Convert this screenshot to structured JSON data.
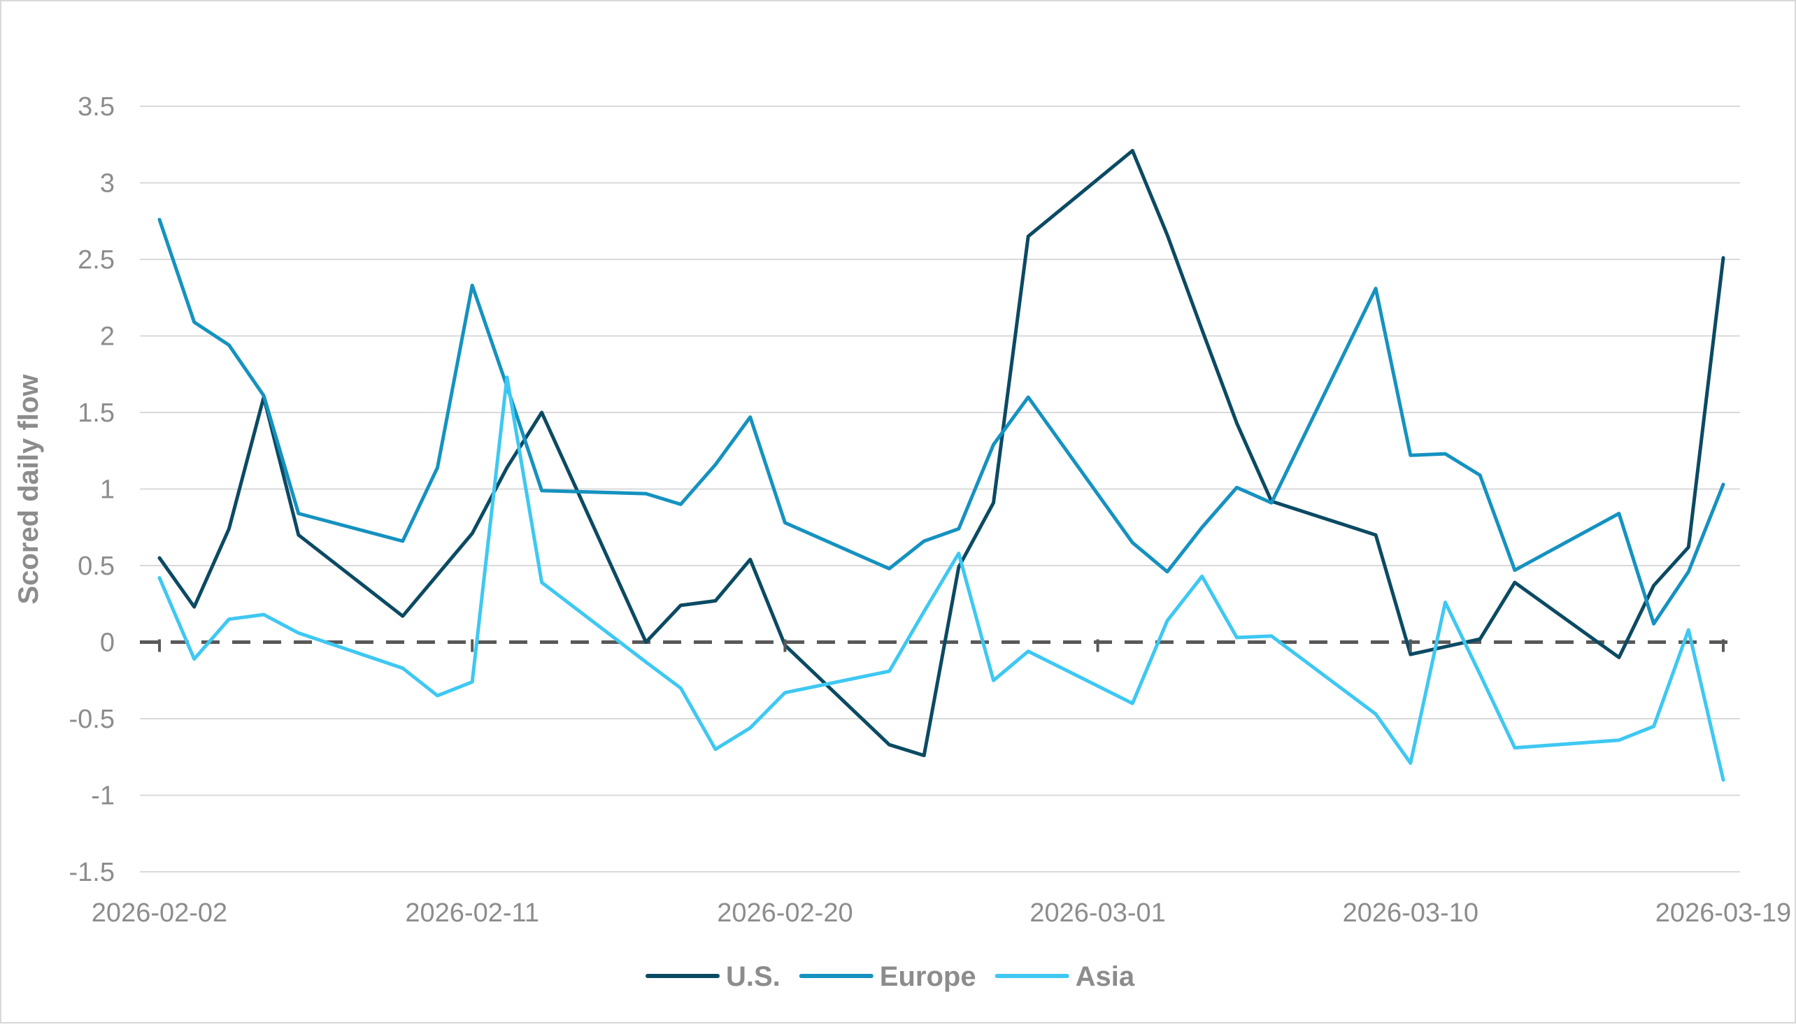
{
  "chart_data": {
    "type": "line",
    "title": "",
    "xlabel": "",
    "ylabel": "Scored daily flow",
    "ylim": [
      -1.5,
      3.5
    ],
    "yticks": [
      -1.5,
      -1,
      -0.5,
      0,
      0.5,
      1,
      1.5,
      2,
      2.5,
      3,
      3.5
    ],
    "ytick_labels": [
      "-1.5",
      "-1",
      "-0.5",
      "0",
      "0.5",
      "1",
      "1.5",
      "2",
      "2.5",
      "3",
      "3.5"
    ],
    "xlim": [
      "2026-02-02",
      "2026-03-19"
    ],
    "xtick_labels": [
      "2026-02-02",
      "2026-02-11",
      "2026-02-20",
      "2026-03-01",
      "2026-03-10",
      "2026-03-19"
    ],
    "reference_line": {
      "y": 0,
      "style": "dashed"
    },
    "grid": true,
    "legend": "bottom",
    "x": [
      "2026-02-02",
      "2026-02-03",
      "2026-02-04",
      "2026-02-05",
      "2026-02-06",
      "2026-02-09",
      "2026-02-10",
      "2026-02-11",
      "2026-02-12",
      "2026-02-13",
      "2026-02-16",
      "2026-02-17",
      "2026-02-18",
      "2026-02-19",
      "2026-02-20",
      "2026-02-23",
      "2026-02-24",
      "2026-02-25",
      "2026-02-26",
      "2026-02-27",
      "2026-03-02",
      "2026-03-03",
      "2026-03-04",
      "2026-03-05",
      "2026-03-06",
      "2026-03-09",
      "2026-03-10",
      "2026-03-11",
      "2026-03-12",
      "2026-03-13",
      "2026-03-16",
      "2026-03-17",
      "2026-03-18",
      "2026-03-19"
    ],
    "series": [
      {
        "name": "U.S.",
        "color": "#0b4a63",
        "values": [
          0.55,
          0.23,
          0.74,
          1.6,
          0.7,
          0.17,
          0.44,
          0.71,
          1.14,
          1.5,
          0.0,
          0.24,
          0.27,
          0.54,
          -0.02,
          -0.67,
          -0.74,
          0.49,
          0.91,
          2.65,
          3.21,
          2.66,
          2.04,
          1.43,
          0.92,
          0.7,
          -0.08,
          -0.03,
          0.02,
          0.39,
          -0.1,
          0.37,
          0.62,
          2.51
        ]
      },
      {
        "name": "Europe",
        "color": "#1592c0",
        "values": [
          2.76,
          2.09,
          1.94,
          1.61,
          0.84,
          0.66,
          1.14,
          2.33,
          1.67,
          0.99,
          0.97,
          0.9,
          1.16,
          1.47,
          0.78,
          0.48,
          0.66,
          0.74,
          1.29,
          1.6,
          0.65,
          0.46,
          0.75,
          1.01,
          0.91,
          2.31,
          1.22,
          1.23,
          1.09,
          0.47,
          0.84,
          0.12,
          0.46,
          1.03
        ]
      },
      {
        "name": "Asia",
        "color": "#3ec8f2",
        "values": [
          0.42,
          -0.11,
          0.15,
          0.18,
          0.06,
          -0.17,
          -0.35,
          -0.26,
          1.73,
          0.39,
          -0.13,
          -0.3,
          -0.7,
          -0.56,
          -0.33,
          -0.19,
          0.2,
          0.58,
          -0.25,
          -0.06,
          -0.4,
          0.14,
          0.43,
          0.03,
          0.04,
          -0.47,
          -0.79,
          0.26,
          -0.21,
          -0.69,
          -0.64,
          -0.55,
          0.08,
          -0.9
        ]
      }
    ]
  }
}
